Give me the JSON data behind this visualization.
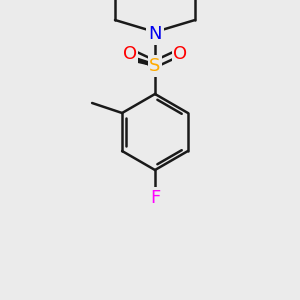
{
  "background_color": "#ebebeb",
  "bond_color": "#1a1a1a",
  "bond_lw": 1.8,
  "colors": {
    "S_thio": "#cccc00",
    "N": "#0000ee",
    "S_sulfonyl": "#ffaa00",
    "O": "#ff0000",
    "F": "#ff00ff",
    "C": "#1a1a1a",
    "methyl": "#1a1a1a"
  },
  "font_size_atom": 11,
  "font_size_label": 10
}
